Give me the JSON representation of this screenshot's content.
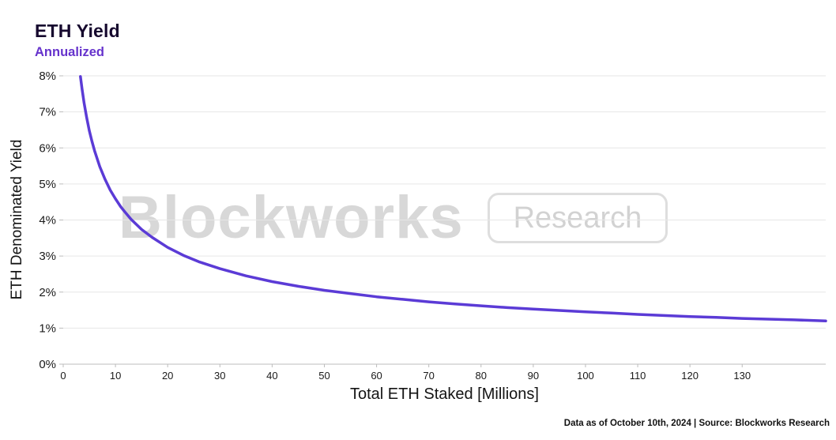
{
  "header": {
    "title": "ETH Yield",
    "subtitle": "Annualized"
  },
  "watermark": {
    "primary": "Blockworks",
    "secondary": "Research"
  },
  "footer": {
    "text": "Data as of October 10th, 2024 | Source: Blockworks Research"
  },
  "colors": {
    "line": "#5b3bd6",
    "subtitle": "#6633cc",
    "grid": "#e6e6e6",
    "axis": "#bcbcbc",
    "tick_text": "#1a1a1a",
    "watermark": "#d8d8d8"
  },
  "chart_data": {
    "type": "line",
    "title": "ETH Yield",
    "subtitle": "Annualized",
    "xlabel": "Total ETH Staked [Millions]",
    "ylabel": "ETH Denominated Yield",
    "xlim": [
      0,
      146
    ],
    "ylim": [
      0,
      8
    ],
    "x_ticks": [
      0,
      10,
      20,
      30,
      40,
      50,
      60,
      70,
      80,
      90,
      100,
      110,
      120,
      130
    ],
    "y_ticks": [
      0,
      1,
      2,
      3,
      4,
      5,
      6,
      7,
      8
    ],
    "y_tick_suffix": "%",
    "grid": "horizontal",
    "legend": "none",
    "series": [
      {
        "name": "ETH Denominated Yield (Annualized)",
        "x": [
          3.3,
          3.6,
          4,
          4.5,
          5,
          5.5,
          6,
          7,
          8,
          9,
          10,
          11,
          12,
          13,
          14,
          15,
          17,
          20,
          23,
          26,
          30,
          35,
          40,
          45,
          50,
          55,
          60,
          65,
          70,
          75,
          80,
          85,
          90,
          95,
          100,
          105,
          110,
          115,
          120,
          125,
          130,
          135,
          140,
          146
        ],
        "y": [
          7.98,
          7.64,
          7.25,
          6.84,
          6.48,
          6.18,
          5.92,
          5.48,
          5.13,
          4.83,
          4.59,
          4.37,
          4.19,
          4.02,
          3.88,
          3.74,
          3.52,
          3.24,
          3.02,
          2.84,
          2.65,
          2.45,
          2.29,
          2.16,
          2.05,
          1.96,
          1.87,
          1.8,
          1.73,
          1.67,
          1.62,
          1.57,
          1.53,
          1.49,
          1.45,
          1.42,
          1.38,
          1.35,
          1.32,
          1.3,
          1.27,
          1.25,
          1.23,
          1.2
        ]
      }
    ]
  }
}
